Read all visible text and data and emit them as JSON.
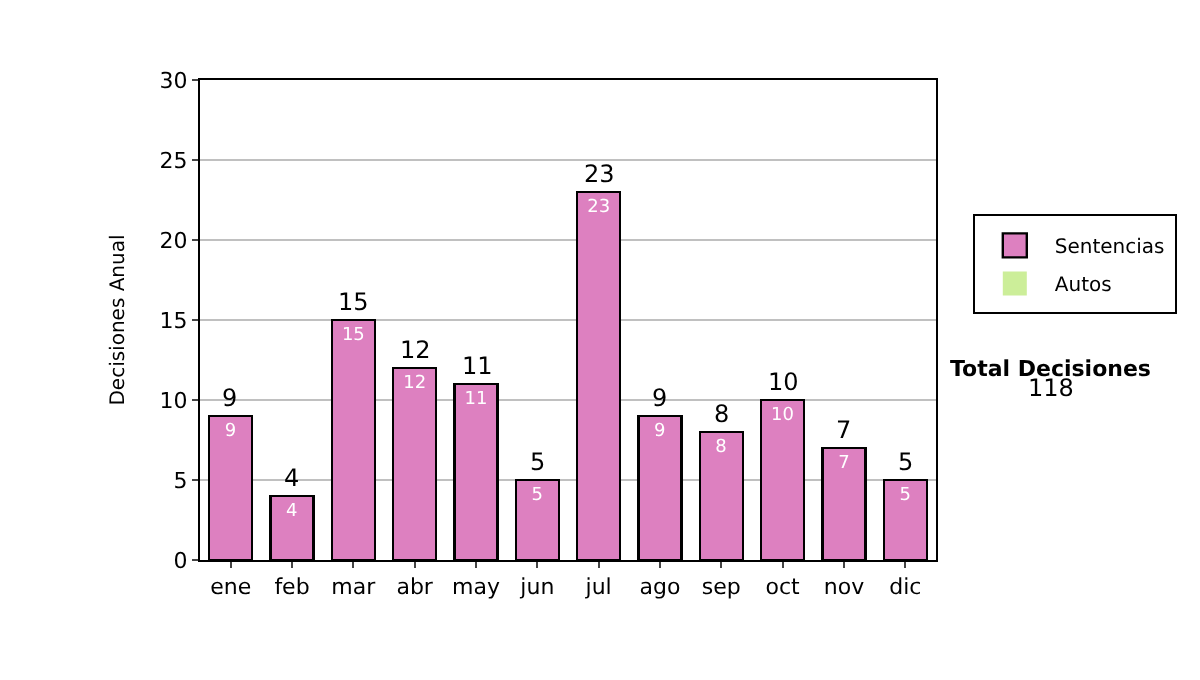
{
  "chart_data": {
    "type": "bar",
    "stacked": true,
    "ylabel": "Decisiones Anual",
    "categories": [
      "ene",
      "feb",
      "mar",
      "abr",
      "may",
      "jun",
      "jul",
      "ago",
      "sep",
      "oct",
      "nov",
      "dic"
    ],
    "series": [
      {
        "name": "Sentencias",
        "color": "#dd80c0",
        "values": [
          9,
          4,
          15,
          12,
          11,
          5,
          23,
          9,
          8,
          10,
          7,
          5
        ],
        "value_labels": [
          "9",
          "4",
          "15",
          "12",
          "11",
          "5",
          "23",
          "9",
          "8",
          "10",
          "7",
          "5"
        ]
      },
      {
        "name": "Autos",
        "color": "#ccee99",
        "values": [
          0,
          0,
          0,
          0,
          0,
          0,
          0,
          0,
          0,
          0,
          0,
          0
        ]
      }
    ],
    "totals": [
      "9",
      "4",
      "15",
      "12",
      "11",
      "5",
      "23",
      "9",
      "8",
      "10",
      "7",
      "5"
    ],
    "ylim": [
      0,
      30
    ],
    "yticks": [
      0,
      5,
      10,
      15,
      20,
      25,
      30
    ],
    "grid": "y",
    "legend": "right",
    "annotations": [
      "Total Decisiones",
      "118"
    ]
  }
}
